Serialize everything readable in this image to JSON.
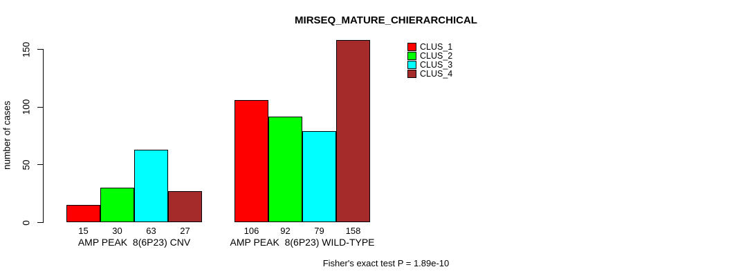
{
  "chart_data": {
    "type": "bar",
    "title": "MIRSEQ_MATURE_CHIERARCHICAL",
    "ylabel": "number of cases",
    "xlabel": "",
    "ylim": [
      0,
      158
    ],
    "yticks": [
      0,
      50,
      100,
      150
    ],
    "grid": false,
    "legend_position": "top-right",
    "categories": [
      "AMP PEAK  8(6P23) CNV",
      "AMP PEAK  8(6P23) WILD-TYPE"
    ],
    "series": [
      {
        "name": "CLUS_1",
        "color": "#FF0000",
        "values": [
          15,
          106
        ]
      },
      {
        "name": "CLUS_2",
        "color": "#00FF00",
        "values": [
          30,
          92
        ]
      },
      {
        "name": "CLUS_3",
        "color": "#00FFFF",
        "values": [
          63,
          79
        ]
      },
      {
        "name": "CLUS_4",
        "color": "#A52A2A",
        "values": [
          27,
          158
        ]
      }
    ],
    "show_value_labels": true,
    "annotation": "Fisher's exact test P = 1.89e-10",
    "colors": {
      "axis": "#000000",
      "text": "#000000",
      "background": "#FFFFFF"
    }
  }
}
